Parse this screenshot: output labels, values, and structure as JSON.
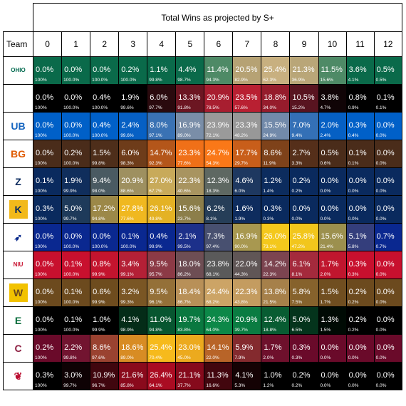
{
  "title": "Total Wins as projected by S+",
  "team_header": "Team",
  "win_columns": [
    "0",
    "1",
    "2",
    "3",
    "4",
    "5",
    "6",
    "7",
    "8",
    "9",
    "10",
    "11",
    "12"
  ],
  "teams": [
    {
      "logo_icon": "ohio-logo-icon",
      "logo_glyph": "OHIO",
      "logo_color": "#00694e",
      "logo_bg": "#ffffff",
      "cells": [
        [
          "0.0%",
          "100%",
          "#0a6a4a"
        ],
        [
          "0.0%",
          "100.0%",
          "#0a6a4a"
        ],
        [
          "0.0%",
          "100.0%",
          "#0a6a4a"
        ],
        [
          "0.2%",
          "100.0%",
          "#0a6a4a"
        ],
        [
          "1.1%",
          "99.8%",
          "#0a6a4a"
        ],
        [
          "4.4%",
          "98.7%",
          "#0a6a4a"
        ],
        [
          "11.4%",
          "94.3%",
          "#4e8a66"
        ],
        [
          "20.5%",
          "82.9%",
          "#b6a274"
        ],
        [
          "25.4%",
          "62.3%",
          "#c8b080"
        ],
        [
          "21.3%",
          "36.9%",
          "#b9a678"
        ],
        [
          "11.5%",
          "15.6%",
          "#4e8a66"
        ],
        [
          "3.6%",
          "4.1%",
          "#0a6a4a"
        ],
        [
          "0.5%",
          "0.5%",
          "#0a6a4a"
        ]
      ]
    },
    {
      "logo_icon": "buffalo-bulls-logo-icon",
      "logo_glyph": "",
      "logo_color": "#ffffff",
      "logo_bg": "#ffffff",
      "cells": [
        [
          "0.0%",
          "100%",
          "#000000"
        ],
        [
          "0.0%",
          "100.0%",
          "#000000"
        ],
        [
          "0.4%",
          "100.0%",
          "#000000"
        ],
        [
          "1.9%",
          "99.6%",
          "#000000"
        ],
        [
          "6.0%",
          "97.7%",
          "#2a0a0e"
        ],
        [
          "13.3%",
          "91.8%",
          "#6c1622"
        ],
        [
          "20.9%",
          "78.5%",
          "#a81e30"
        ],
        [
          "23.5%",
          "57.6%",
          "#b92032"
        ],
        [
          "18.8%",
          "34.0%",
          "#961c2c"
        ],
        [
          "10.5%",
          "15.2%",
          "#581420"
        ],
        [
          "3.8%",
          "4.7%",
          "#100406"
        ],
        [
          "0.8%",
          "0.9%",
          "#000000"
        ],
        [
          "0.1%",
          "0.1%",
          "#000000"
        ]
      ]
    },
    {
      "logo_icon": "ub-logo-icon",
      "logo_glyph": "UB",
      "logo_color": "#1565c0",
      "logo_bg": "#ffffff",
      "cells": [
        [
          "0.0%",
          "100%",
          "#0060c8"
        ],
        [
          "0.0%",
          "100.0%",
          "#0060c8"
        ],
        [
          "0.4%",
          "100.0%",
          "#0060c8"
        ],
        [
          "2.4%",
          "99.6%",
          "#0660c4"
        ],
        [
          "8.0%",
          "97.1%",
          "#3a72b4"
        ],
        [
          "16.9%",
          "89.0%",
          "#7a8ea8"
        ],
        [
          "23.9%",
          "72.1%",
          "#9a9a9a"
        ],
        [
          "23.3%",
          "48.2%",
          "#989898"
        ],
        [
          "15.5%",
          "24.9%",
          "#728aaa"
        ],
        [
          "7.0%",
          "9.4%",
          "#3470b6"
        ],
        [
          "2.0%",
          "2.4%",
          "#0660c4"
        ],
        [
          "0.3%",
          "0.4%",
          "#0060c8"
        ],
        [
          "0.0%",
          "0.0%",
          "#0060c8"
        ]
      ]
    },
    {
      "logo_icon": "bg-falcons-logo-icon",
      "logo_glyph": "BG",
      "logo_color": "#e05a00",
      "logo_bg": "#ffffff",
      "cells": [
        [
          "0.0%",
          "100%",
          "#4a2c1a"
        ],
        [
          "0.2%",
          "100.0%",
          "#4a2c1a"
        ],
        [
          "1.5%",
          "99.8%",
          "#4e2e1a"
        ],
        [
          "6.0%",
          "98.3%",
          "#6e3c1a"
        ],
        [
          "14.7%",
          "92.3%",
          "#b4561a"
        ],
        [
          "23.3%",
          "77.6%",
          "#f07018"
        ],
        [
          "24.7%",
          "54.3%",
          "#fa7818"
        ],
        [
          "17.7%",
          "29.7%",
          "#c85e1a"
        ],
        [
          "8.6%",
          "11.9%",
          "#7e421a"
        ],
        [
          "2.7%",
          "3.3%",
          "#552f1a"
        ],
        [
          "0.5%",
          "0.6%",
          "#4a2c1a"
        ],
        [
          "0.1%",
          "0.1%",
          "#4a2c1a"
        ],
        [
          "0.0%",
          "0.0%",
          "#4a2c1a"
        ]
      ]
    },
    {
      "logo_icon": "akron-zips-logo-icon",
      "logo_glyph": "Z",
      "logo_color": "#0a2a5e",
      "logo_bg": "#ffffff",
      "cells": [
        [
          "0.1%",
          "100%",
          "#0a2a5e"
        ],
        [
          "1.9%",
          "99.9%",
          "#102e5c"
        ],
        [
          "9.4%",
          "98.0%",
          "#4a5a62"
        ],
        [
          "20.9%",
          "88.6%",
          "#9e9060"
        ],
        [
          "27.0%",
          "67.7%",
          "#c8aa5a"
        ],
        [
          "22.3%",
          "40.6%",
          "#a89460"
        ],
        [
          "12.3%",
          "18.3%",
          "#5e6862"
        ],
        [
          "4.6%",
          "6.0%",
          "#1e3860"
        ],
        [
          "1.2%",
          "1.4%",
          "#0c2c5e"
        ],
        [
          "0.2%",
          "0.2%",
          "#0a2a5e"
        ],
        [
          "0.0%",
          "0.0%",
          "#0a2a5e"
        ],
        [
          "0.0%",
          "0.0%",
          "#0a2a5e"
        ],
        [
          "0.0%",
          "0.0%",
          "#0a2a5e"
        ]
      ]
    },
    {
      "logo_icon": "kent-state-logo-icon",
      "logo_glyph": "K",
      "logo_color": "#0a2a5e",
      "logo_bg": "#f2b91b",
      "cells": [
        [
          "0.3%",
          "100%",
          "#0a2a5e"
        ],
        [
          "5.0%",
          "99.7%",
          "#1e3a5a"
        ],
        [
          "17.2%",
          "94.8%",
          "#9c8848"
        ],
        [
          "27.8%",
          "77.6%",
          "#f0b820"
        ],
        [
          "26.1%",
          "49.8%",
          "#e4b224"
        ],
        [
          "15.6%",
          "23.7%",
          "#8c7e4a"
        ],
        [
          "6.2%",
          "8.1%",
          "#263e58"
        ],
        [
          "1.6%",
          "1.9%",
          "#0e2c5e"
        ],
        [
          "0.3%",
          "0.3%",
          "#0a2a5e"
        ],
        [
          "0.0%",
          "0.0%",
          "#0a2a5e"
        ],
        [
          "0.0%",
          "0.0%",
          "#0a2a5e"
        ],
        [
          "0.0%",
          "0.0%",
          "#0a2a5e"
        ],
        [
          "0.0%",
          "0.0%",
          "#0a2a5e"
        ]
      ]
    },
    {
      "logo_icon": "toledo-rockets-logo-icon",
      "logo_glyph": "➶",
      "logo_color": "#0a2a8c",
      "logo_bg": "#ffffff",
      "cells": [
        [
          "0.0%",
          "100%",
          "#0a2890"
        ],
        [
          "0.0%",
          "100.0%",
          "#0a2890"
        ],
        [
          "0.0%",
          "100.0%",
          "#0a2890"
        ],
        [
          "0.1%",
          "100.0%",
          "#0a2890"
        ],
        [
          "0.4%",
          "99.9%",
          "#0a2890"
        ],
        [
          "2.1%",
          "99.5%",
          "#1c308a"
        ],
        [
          "7.3%",
          "97.4%",
          "#485070"
        ],
        [
          "16.9%",
          "90.0%",
          "#a89850"
        ],
        [
          "26.0%",
          "73.1%",
          "#f4c81c"
        ],
        [
          "25.8%",
          "47.2%",
          "#f2c61c"
        ],
        [
          "15.6%",
          "21.4%",
          "#9c904e"
        ],
        [
          "5.1%",
          "5.8%",
          "#343e7c"
        ],
        [
          "0.7%",
          "0.7%",
          "#0a2890"
        ]
      ]
    },
    {
      "logo_icon": "niu-huskies-logo-icon",
      "logo_glyph": "NIU",
      "logo_color": "#c8102e",
      "logo_bg": "#ffffff",
      "cells": [
        [
          "0.0%",
          "100%",
          "#c8102e"
        ],
        [
          "0.1%",
          "100.0%",
          "#c8102e"
        ],
        [
          "0.8%",
          "99.9%",
          "#c4142e"
        ],
        [
          "3.4%",
          "99.1%",
          "#b42036"
        ],
        [
          "9.5%",
          "95.7%",
          "#8c3a46"
        ],
        [
          "18.0%",
          "86.2%",
          "#6e4e54"
        ],
        [
          "23.8%",
          "68.1%",
          "#5a5a5a"
        ],
        [
          "22.0%",
          "44.3%",
          "#605656"
        ],
        [
          "14.2%",
          "22.3%",
          "#7c4450"
        ],
        [
          "6.1%",
          "8.1%",
          "#a42a3c"
        ],
        [
          "1.7%",
          "2.0%",
          "#c0162e"
        ],
        [
          "0.3%",
          "0.3%",
          "#c8102e"
        ],
        [
          "0.0%",
          "0.0%",
          "#c8102e"
        ]
      ]
    },
    {
      "logo_icon": "western-michigan-logo-icon",
      "logo_glyph": "W",
      "logo_color": "#6c4a1e",
      "logo_bg": "#f2c200",
      "cells": [
        [
          "0.0%",
          "100%",
          "#6c4a1e"
        ],
        [
          "0.1%",
          "100.0%",
          "#6c4a1e"
        ],
        [
          "0.6%",
          "99.9%",
          "#6e4c1e"
        ],
        [
          "3.2%",
          "99.3%",
          "#7a5624"
        ],
        [
          "9.5%",
          "96.1%",
          "#947038"
        ],
        [
          "18.4%",
          "86.7%",
          "#b89058"
        ],
        [
          "24.4%",
          "68.2%",
          "#cca466"
        ],
        [
          "22.3%",
          "43.8%",
          "#c49c60"
        ],
        [
          "13.8%",
          "21.5%",
          "#a6804a"
        ],
        [
          "5.8%",
          "7.5%",
          "#86622c"
        ],
        [
          "1.5%",
          "1.7%",
          "#704e20"
        ],
        [
          "0.2%",
          "0.2%",
          "#6c4a1e"
        ],
        [
          "0.0%",
          "0.0%",
          "#6c4a1e"
        ]
      ]
    },
    {
      "logo_icon": "eastern-michigan-logo-icon",
      "logo_glyph": "E",
      "logo_color": "#046a38",
      "logo_bg": "#ffffff",
      "cells": [
        [
          "0.0%",
          "100%",
          "#000000"
        ],
        [
          "0.1%",
          "100.0%",
          "#000000"
        ],
        [
          "1.0%",
          "99.9%",
          "#000000"
        ],
        [
          "4.1%",
          "98.9%",
          "#042c18"
        ],
        [
          "11.0%",
          "94.8%",
          "#075630"
        ],
        [
          "19.7%",
          "83.8%",
          "#0a7840"
        ],
        [
          "24.3%",
          "64.0%",
          "#0c8848"
        ],
        [
          "20.9%",
          "39.7%",
          "#0a7c42"
        ],
        [
          "12.4%",
          "18.8%",
          "#085c32"
        ],
        [
          "5.0%",
          "6.5%",
          "#04341c"
        ],
        [
          "1.3%",
          "1.5%",
          "#000a04"
        ],
        [
          "0.2%",
          "0.2%",
          "#000000"
        ],
        [
          "0.0%",
          "0.0%",
          "#000000"
        ]
      ]
    },
    {
      "logo_icon": "central-michigan-logo-icon",
      "logo_glyph": "C",
      "logo_color": "#8c1d40",
      "logo_bg": "#ffffff",
      "cells": [
        [
          "0.2%",
          "100%",
          "#6a0a2a"
        ],
        [
          "2.2%",
          "99.8%",
          "#721430"
        ],
        [
          "8.6%",
          "97.6%",
          "#9a4230"
        ],
        [
          "18.6%",
          "89.0%",
          "#d88c24"
        ],
        [
          "25.4%",
          "70.4%",
          "#f6ba1c"
        ],
        [
          "23.0%",
          "45.0%",
          "#ecaa1e"
        ],
        [
          "14.1%",
          "22.0%",
          "#b86428"
        ],
        [
          "5.9%",
          "7.9%",
          "#842a2e"
        ],
        [
          "1.7%",
          "2.0%",
          "#6e102c"
        ],
        [
          "0.3%",
          "0.3%",
          "#6a0a2a"
        ],
        [
          "0.0%",
          "0.0%",
          "#6a0a2a"
        ],
        [
          "0.0%",
          "0.0%",
          "#6a0a2a"
        ],
        [
          "0.0%",
          "0.0%",
          "#6a0a2a"
        ]
      ]
    },
    {
      "logo_icon": "ball-state-logo-icon",
      "logo_glyph": "❦",
      "logo_color": "#ba0c2f",
      "logo_bg": "#ffffff",
      "cells": [
        [
          "0.3%",
          "100%",
          "#000000"
        ],
        [
          "3.0%",
          "99.7%",
          "#0e0204"
        ],
        [
          "10.9%",
          "96.7%",
          "#40060e"
        ],
        [
          "21.6%",
          "85.8%",
          "#8a0a1c"
        ],
        [
          "26.4%",
          "64.1%",
          "#aa0c22"
        ],
        [
          "21.1%",
          "37.7%",
          "#860a1c"
        ],
        [
          "11.3%",
          "16.6%",
          "#42060e"
        ],
        [
          "4.1%",
          "5.3%",
          "#140204"
        ],
        [
          "1.0%",
          "1.2%",
          "#000000"
        ],
        [
          "0.2%",
          "0.2%",
          "#000000"
        ],
        [
          "0.0%",
          "0.0%",
          "#000000"
        ],
        [
          "0.0%",
          "0.0%",
          "#000000"
        ],
        [
          "0.0%",
          "0.0%",
          "#000000"
        ]
      ]
    }
  ]
}
